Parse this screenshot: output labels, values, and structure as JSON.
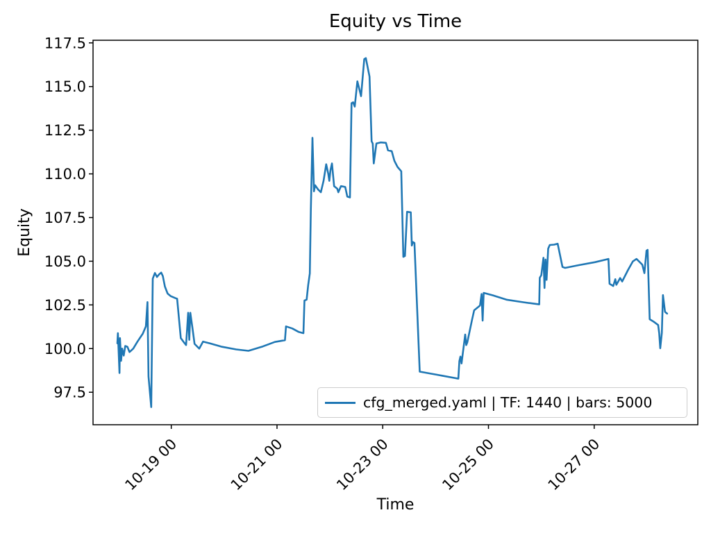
{
  "figure": {
    "background": "#ffffff",
    "text_color": "#000000"
  },
  "chart_data": {
    "type": "line",
    "title": "Equity vs Time",
    "xlabel": "Time",
    "ylabel": "Equity",
    "grid": false,
    "legend": {
      "position": "lower right",
      "entries": [
        "cfg_merged.yaml | TF: 1440 | bars: 5000"
      ]
    },
    "x_axis": {
      "unit": "days relative to 10-19 00:00",
      "xlim": [
        -1.48,
        9.96
      ],
      "ticks": [
        0,
        2,
        4,
        6,
        8
      ],
      "tick_labels": [
        "10-19 00",
        "10-21 00",
        "10-23 00",
        "10-25 00",
        "10-27 00"
      ],
      "tick_rotation_deg": 45
    },
    "y_axis": {
      "ylim": [
        95.64,
        117.65
      ],
      "ticks": [
        97.5,
        100.0,
        102.5,
        105.0,
        107.5,
        110.0,
        112.5,
        115.0,
        117.5
      ],
      "tick_labels": [
        "97.5",
        "100.0",
        "102.5",
        "105.0",
        "107.5",
        "110.0",
        "112.5",
        "115.0",
        "117.5"
      ]
    },
    "series": [
      {
        "name": "cfg_merged.yaml | TF: 1440 | bars: 5000",
        "color": "#1f77b4",
        "line_width": 2.6,
        "points": [
          [
            -1.02,
            100.3
          ],
          [
            -1.01,
            100.88
          ],
          [
            -0.98,
            98.6
          ],
          [
            -0.97,
            100.6
          ],
          [
            -0.95,
            99.3
          ],
          [
            -0.93,
            100.0
          ],
          [
            -0.9,
            99.6
          ],
          [
            -0.87,
            100.15
          ],
          [
            -0.83,
            100.1
          ],
          [
            -0.79,
            99.8
          ],
          [
            -0.72,
            100.0
          ],
          [
            -0.64,
            100.4
          ],
          [
            -0.54,
            100.85
          ],
          [
            -0.48,
            101.27
          ],
          [
            -0.45,
            102.66
          ],
          [
            -0.43,
            98.4
          ],
          [
            -0.38,
            96.65
          ],
          [
            -0.35,
            104.0
          ],
          [
            -0.31,
            104.33
          ],
          [
            -0.27,
            104.1
          ],
          [
            -0.23,
            104.25
          ],
          [
            -0.19,
            104.35
          ],
          [
            -0.16,
            104.15
          ],
          [
            -0.12,
            103.55
          ],
          [
            -0.07,
            103.15
          ],
          [
            -0.01,
            103.0
          ],
          [
            0.07,
            102.9
          ],
          [
            0.11,
            102.85
          ],
          [
            0.18,
            100.6
          ],
          [
            0.24,
            100.35
          ],
          [
            0.28,
            100.2
          ],
          [
            0.32,
            102.05
          ],
          [
            0.34,
            100.5
          ],
          [
            0.36,
            102.05
          ],
          [
            0.4,
            101.2
          ],
          [
            0.44,
            100.27
          ],
          [
            0.53,
            100.0
          ],
          [
            0.6,
            100.4
          ],
          [
            0.73,
            100.3
          ],
          [
            0.96,
            100.1
          ],
          [
            1.23,
            99.95
          ],
          [
            1.46,
            99.87
          ],
          [
            1.73,
            100.12
          ],
          [
            1.96,
            100.38
          ],
          [
            2.15,
            100.48
          ],
          [
            2.17,
            101.27
          ],
          [
            2.29,
            101.15
          ],
          [
            2.41,
            100.95
          ],
          [
            2.5,
            100.88
          ],
          [
            2.52,
            102.75
          ],
          [
            2.56,
            102.8
          ],
          [
            2.59,
            103.65
          ],
          [
            2.62,
            104.3
          ],
          [
            2.64,
            108.0
          ],
          [
            2.67,
            112.07
          ],
          [
            2.7,
            109.0
          ],
          [
            2.72,
            109.35
          ],
          [
            2.78,
            109.1
          ],
          [
            2.83,
            108.95
          ],
          [
            2.88,
            109.6
          ],
          [
            2.93,
            110.55
          ],
          [
            2.97,
            110.0
          ],
          [
            2.99,
            109.6
          ],
          [
            3.01,
            110.2
          ],
          [
            3.04,
            110.6
          ],
          [
            3.08,
            109.3
          ],
          [
            3.14,
            109.15
          ],
          [
            3.16,
            108.95
          ],
          [
            3.21,
            109.3
          ],
          [
            3.29,
            109.25
          ],
          [
            3.33,
            108.7
          ],
          [
            3.38,
            108.65
          ],
          [
            3.39,
            110.5
          ],
          [
            3.41,
            114.05
          ],
          [
            3.44,
            114.1
          ],
          [
            3.47,
            113.85
          ],
          [
            3.52,
            115.3
          ],
          [
            3.59,
            114.45
          ],
          [
            3.65,
            116.57
          ],
          [
            3.68,
            116.63
          ],
          [
            3.75,
            115.57
          ],
          [
            3.79,
            111.87
          ],
          [
            3.81,
            111.74
          ],
          [
            3.83,
            110.6
          ],
          [
            3.88,
            111.74
          ],
          [
            3.96,
            111.8
          ],
          [
            4.06,
            111.78
          ],
          [
            4.1,
            111.35
          ],
          [
            4.17,
            111.3
          ],
          [
            4.22,
            110.75
          ],
          [
            4.28,
            110.4
          ],
          [
            4.35,
            110.15
          ],
          [
            4.39,
            105.25
          ],
          [
            4.42,
            105.3
          ],
          [
            4.46,
            107.83
          ],
          [
            4.53,
            107.8
          ],
          [
            4.55,
            105.9
          ],
          [
            4.57,
            106.1
          ],
          [
            4.6,
            106.05
          ],
          [
            4.7,
            98.68
          ],
          [
            5.03,
            98.5
          ],
          [
            5.43,
            98.28
          ],
          [
            5.45,
            99.28
          ],
          [
            5.47,
            99.54
          ],
          [
            5.49,
            99.15
          ],
          [
            5.56,
            100.8
          ],
          [
            5.58,
            100.2
          ],
          [
            5.6,
            100.35
          ],
          [
            5.69,
            101.66
          ],
          [
            5.73,
            102.19
          ],
          [
            5.84,
            102.46
          ],
          [
            5.87,
            103.12
          ],
          [
            5.89,
            101.6
          ],
          [
            5.91,
            103.19
          ],
          [
            6.08,
            103.05
          ],
          [
            6.34,
            102.8
          ],
          [
            6.67,
            102.65
          ],
          [
            6.96,
            102.53
          ],
          [
            6.97,
            104.05
          ],
          [
            7.0,
            104.2
          ],
          [
            7.04,
            105.2
          ],
          [
            7.06,
            103.47
          ],
          [
            7.08,
            105.1
          ],
          [
            7.1,
            103.93
          ],
          [
            7.13,
            105.72
          ],
          [
            7.16,
            105.93
          ],
          [
            7.24,
            105.95
          ],
          [
            7.31,
            106.0
          ],
          [
            7.35,
            105.4
          ],
          [
            7.4,
            104.67
          ],
          [
            7.45,
            104.62
          ],
          [
            7.72,
            104.78
          ],
          [
            8.02,
            104.95
          ],
          [
            8.27,
            105.13
          ],
          [
            8.29,
            103.71
          ],
          [
            8.36,
            103.58
          ],
          [
            8.4,
            103.97
          ],
          [
            8.42,
            103.65
          ],
          [
            8.49,
            104.04
          ],
          [
            8.53,
            103.84
          ],
          [
            8.64,
            104.5
          ],
          [
            8.73,
            104.99
          ],
          [
            8.8,
            105.13
          ],
          [
            8.91,
            104.8
          ],
          [
            8.95,
            104.32
          ],
          [
            8.99,
            105.6
          ],
          [
            9.01,
            105.65
          ],
          [
            9.05,
            101.68
          ],
          [
            9.12,
            101.55
          ],
          [
            9.21,
            101.35
          ],
          [
            9.23,
            100.88
          ],
          [
            9.25,
            100.02
          ],
          [
            9.28,
            100.9
          ],
          [
            9.3,
            103.06
          ],
          [
            9.34,
            102.1
          ],
          [
            9.38,
            102.0
          ]
        ]
      }
    ]
  }
}
